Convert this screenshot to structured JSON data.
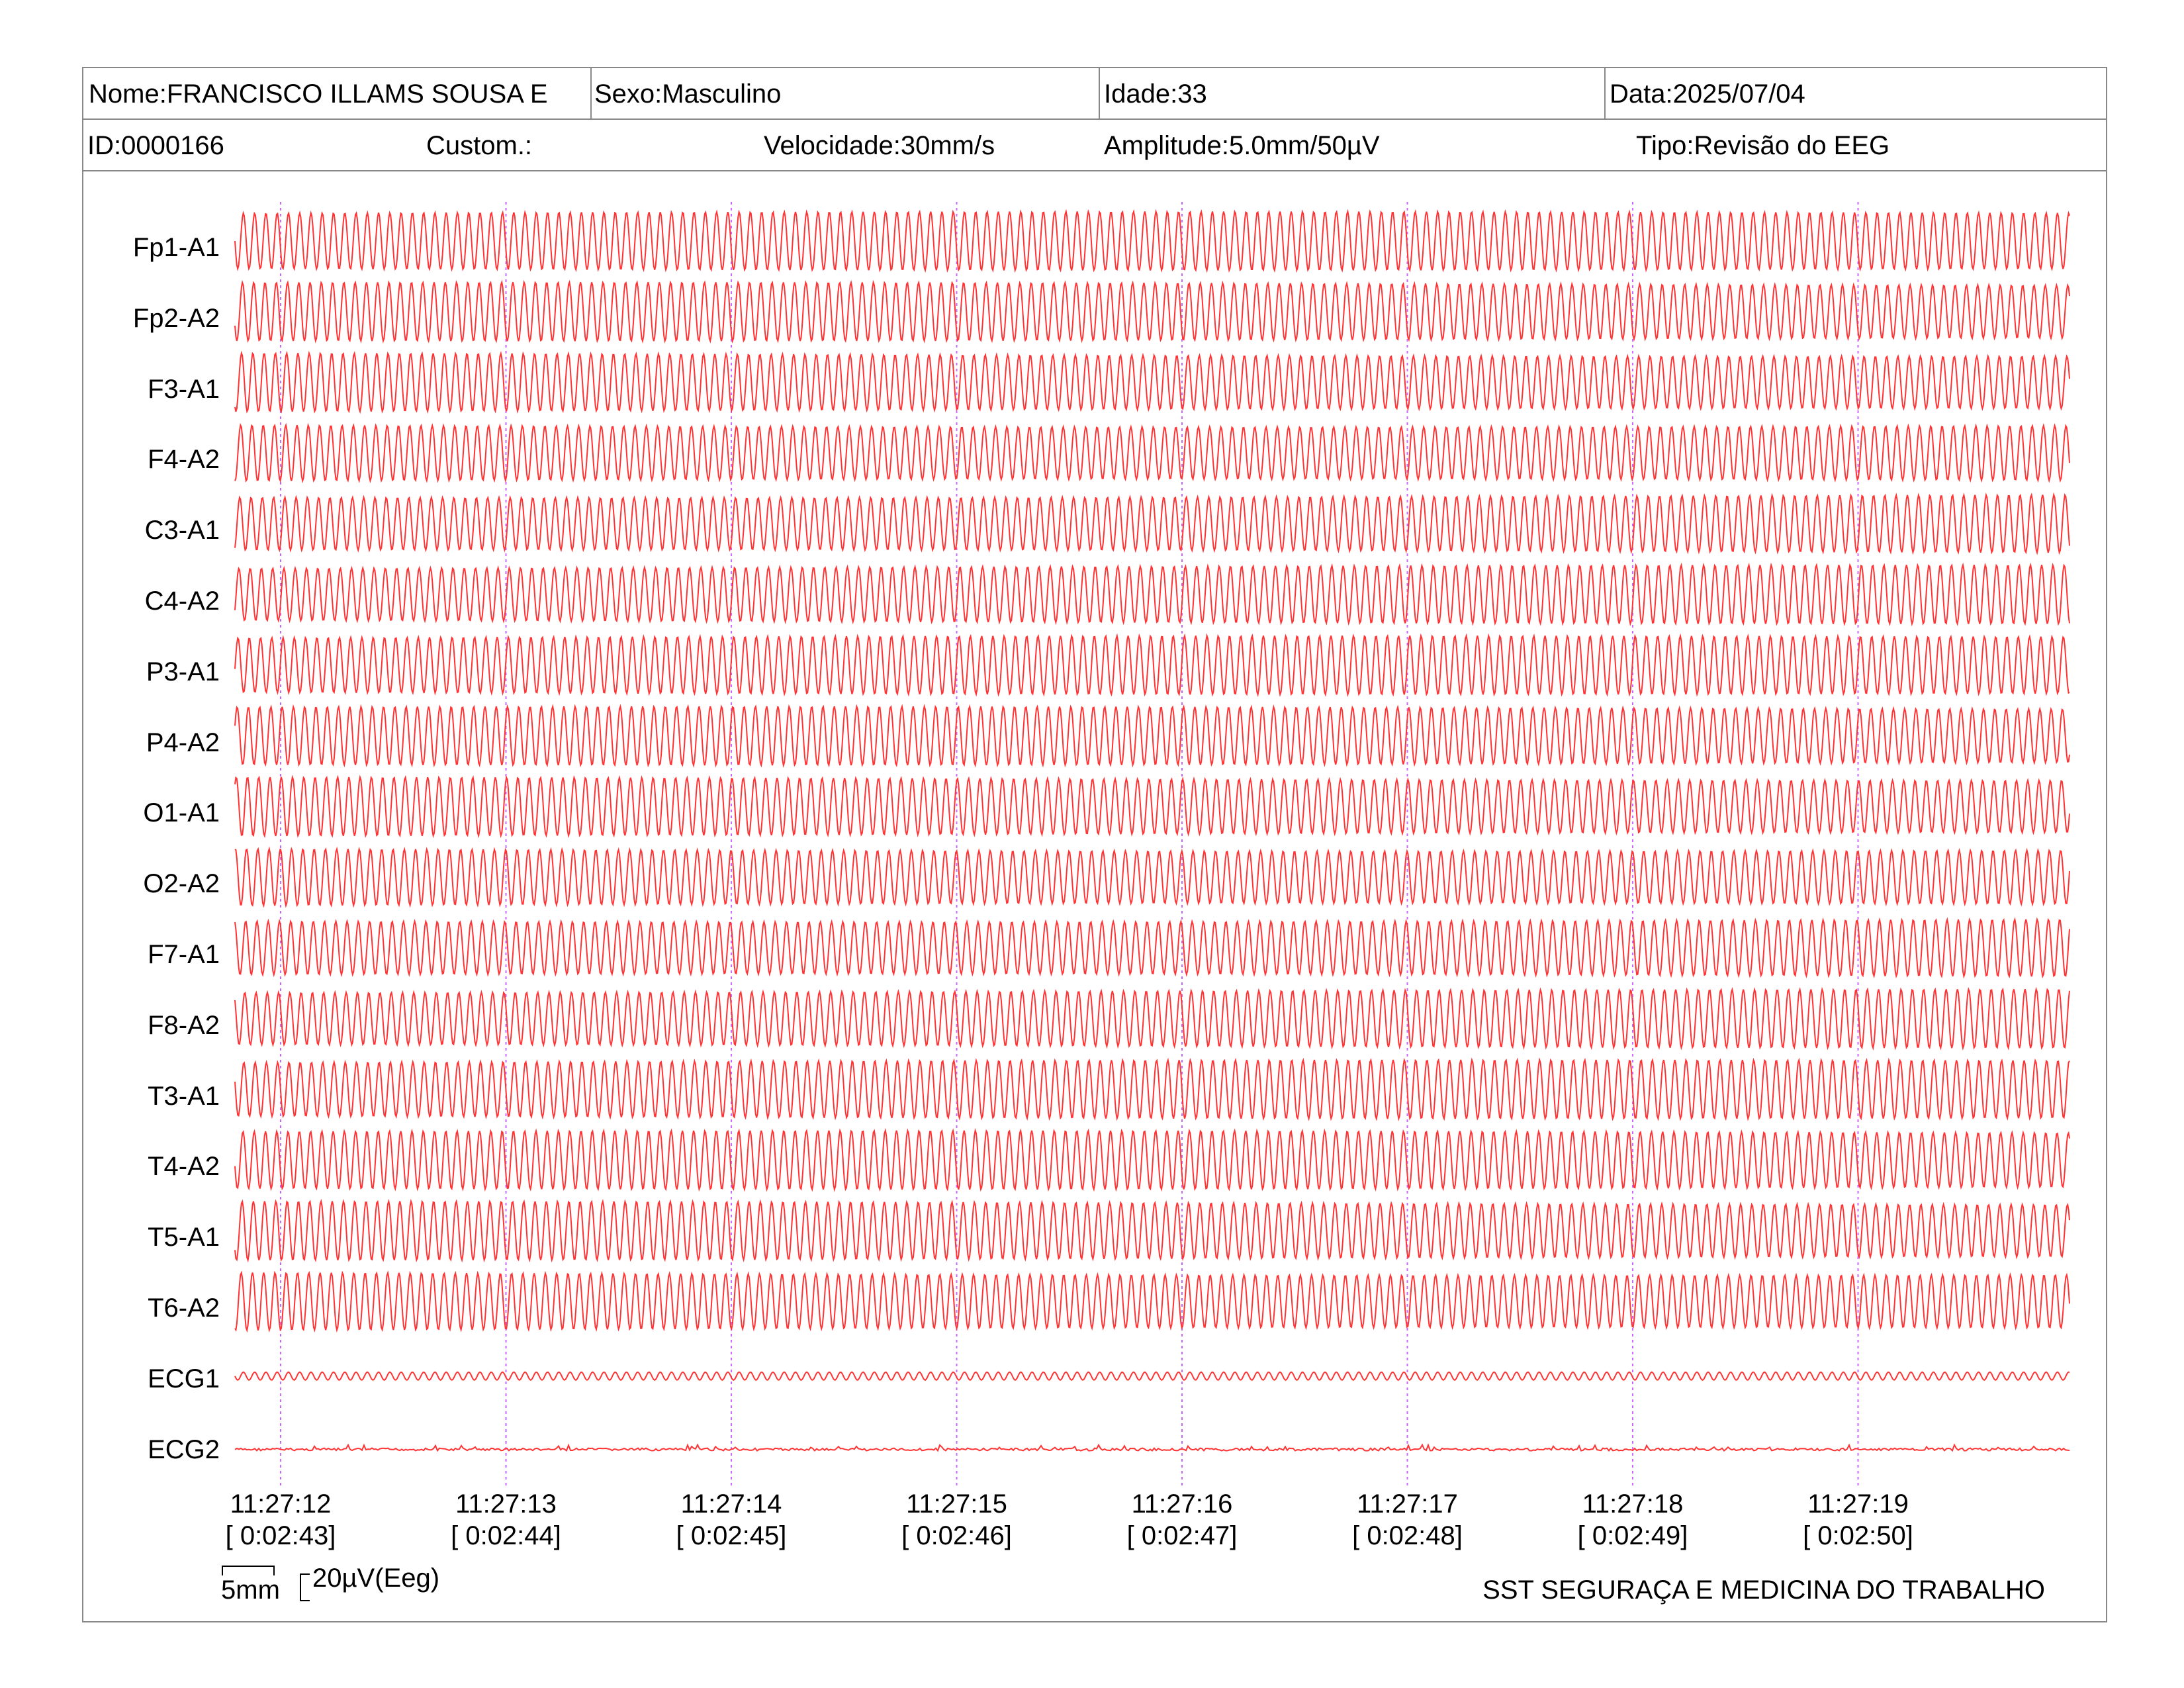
{
  "header": {
    "nome": "Nome:FRANCISCO ILLAMS SOUSA E",
    "sexo": "Sexo:Masculino",
    "idade": "Idade:33",
    "data": "Data:2025/07/04",
    "id": "ID:0000166",
    "custom": "Custom.:",
    "velocidade": "Velocidade:30mm/s",
    "amplitude": "Amplitude:5.0mm/50µV",
    "tipo": "Tipo:Revisão do EEG"
  },
  "chart_data": {
    "type": "line",
    "channels": [
      "Fp1-A1",
      "Fp2-A2",
      "F3-A1",
      "F4-A2",
      "C3-A1",
      "C4-A2",
      "P3-A1",
      "P4-A2",
      "O1-A1",
      "O2-A2",
      "F7-A1",
      "F8-A2",
      "T3-A1",
      "T4-A2",
      "T5-A1",
      "T6-A2",
      "ECG1",
      "ECG2"
    ],
    "time_labels": [
      "11:27:12",
      "11:27:13",
      "11:27:14",
      "11:27:15",
      "11:27:16",
      "11:27:17",
      "11:27:18",
      "11:27:19"
    ],
    "elapsed_labels": [
      "[ 0:02:43]",
      "[ 0:02:44]",
      "[ 0:02:45]",
      "[ 0:02:46]",
      "[ 0:02:47]",
      "[ 0:02:48]",
      "[ 0:02:49]",
      "[ 0:02:50]"
    ],
    "trace_color": "#ff3333",
    "marker_color": "#cc66ff",
    "eeg_wave_frequency_hz": 20,
    "ecg1_wave_frequency_hz": 20,
    "seconds_shown": 8.2
  },
  "scale": {
    "time_bar": "5mm",
    "amplitude_bar": "20µV(Eeg)"
  },
  "footer": {
    "company": "SST SEGURAÇA E MEDICINA DO TRABALHO"
  }
}
